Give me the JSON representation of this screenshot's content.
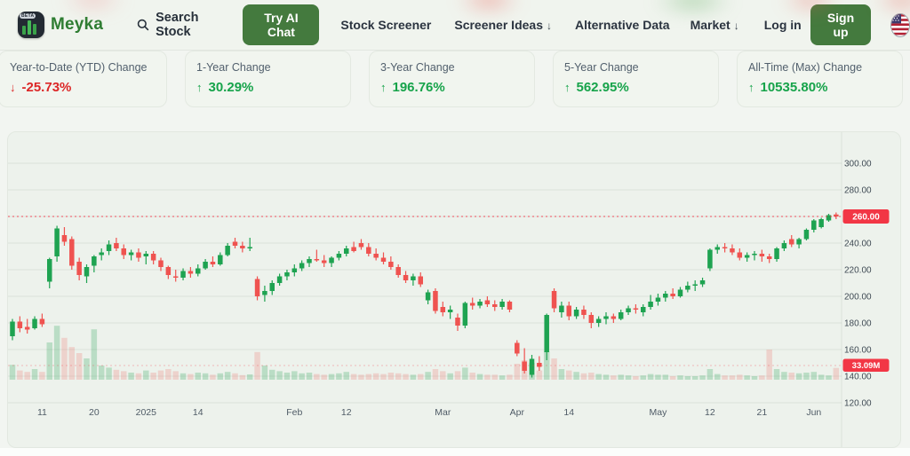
{
  "nav": {
    "brand": "Meyka",
    "brand_beta": "BETA",
    "search_label": "Search Stock",
    "try_ai_chat": "Try AI Chat",
    "stock_screener": "Stock Screener",
    "screener_ideas": "Screener Ideas",
    "alternative_data": "Alternative Data",
    "market": "Market",
    "dropdown_arrow": "↓",
    "log_in": "Log in",
    "sign_up": "Sign up"
  },
  "stats": {
    "cards": [
      {
        "label": "Year-to-Date (YTD) Change",
        "arrow": "↓",
        "value": "-25.73%",
        "direction": "down"
      },
      {
        "label": "1-Year Change",
        "arrow": "↑",
        "value": "30.29%",
        "direction": "up"
      },
      {
        "label": "3-Year Change",
        "arrow": "↑",
        "value": "196.76%",
        "direction": "up"
      },
      {
        "label": "5-Year Change",
        "arrow": "↑",
        "value": "562.95%",
        "direction": "up"
      },
      {
        "label": "All-Time (Max) Change",
        "arrow": "↑",
        "value": "10535.80%",
        "direction": "up"
      }
    ]
  },
  "colors": {
    "up": "#1ea351",
    "down": "#ef5350",
    "vol_up": "rgba(34,160,80,0.25)",
    "vol_down": "rgba(239,83,80,0.20)",
    "badge": "#f23645",
    "grid": "rgba(96,125,97,0.13)",
    "axis_text": "#3f4a54",
    "date_text": "#4f5b66"
  },
  "chart_data": {
    "type": "candlestick_with_volume",
    "last_price_label": "260.00",
    "last_volume_label": "33.09M",
    "y_ticks": [
      300,
      280,
      260,
      240,
      220,
      200,
      180,
      160,
      140,
      120
    ],
    "y_range": [
      118,
      310
    ],
    "x_ticks": [
      {
        "label": "11",
        "index": 4
      },
      {
        "label": "20",
        "index": 11
      },
      {
        "label": "2025",
        "index": 18
      },
      {
        "label": "14",
        "index": 25
      },
      {
        "label": "Feb",
        "index": 38
      },
      {
        "label": "12",
        "index": 45
      },
      {
        "label": "Mar",
        "index": 58
      },
      {
        "label": "Apr",
        "index": 68
      },
      {
        "label": "14",
        "index": 75
      },
      {
        "label": "May",
        "index": 87
      },
      {
        "label": "12",
        "index": 94
      },
      {
        "label": "21",
        "index": 101
      },
      {
        "label": "Jun",
        "index": 108
      }
    ],
    "candles_format": [
      "open",
      "high",
      "low",
      "close",
      "volume_millions"
    ],
    "candles": [
      [
        170,
        183,
        167,
        181,
        42
      ],
      [
        181,
        185,
        173,
        176,
        26
      ],
      [
        177,
        183,
        172,
        175,
        22
      ],
      [
        176,
        185,
        175,
        183,
        30
      ],
      [
        183,
        187,
        177,
        179,
        22
      ],
      [
        211,
        229,
        206,
        228,
        105
      ],
      [
        230,
        253,
        226,
        251,
        152
      ],
      [
        246,
        252,
        238,
        241,
        118
      ],
      [
        243,
        245,
        220,
        223,
        92
      ],
      [
        226,
        229,
        212,
        216,
        75
      ],
      [
        215,
        224,
        210,
        222,
        60
      ],
      [
        223,
        231,
        218,
        230,
        142
      ],
      [
        231,
        236,
        227,
        233,
        40
      ],
      [
        234,
        242,
        231,
        239,
        34
      ],
      [
        240,
        244,
        234,
        236,
        28
      ],
      [
        236,
        239,
        228,
        231,
        24
      ],
      [
        231,
        235,
        227,
        233,
        20
      ],
      [
        233,
        236,
        226,
        229,
        18
      ],
      [
        230,
        234,
        224,
        232,
        26
      ],
      [
        232,
        234,
        224,
        227,
        20
      ],
      [
        227,
        229,
        219,
        222,
        26
      ],
      [
        222,
        223,
        213,
        216,
        30
      ],
      [
        215,
        220,
        211,
        214,
        24
      ],
      [
        214,
        221,
        212,
        219,
        18
      ],
      [
        219,
        222,
        214,
        217,
        16
      ],
      [
        217,
        224,
        215,
        221,
        20
      ],
      [
        221,
        228,
        220,
        226,
        18
      ],
      [
        226,
        230,
        222,
        224,
        14
      ],
      [
        224,
        233,
        223,
        231,
        18
      ],
      [
        231,
        240,
        230,
        238,
        22
      ],
      [
        241,
        244,
        236,
        238,
        18
      ],
      [
        238,
        241,
        233,
        236,
        13
      ],
      [
        236,
        244,
        234,
        237,
        15
      ],
      [
        213,
        215,
        197,
        200,
        78
      ],
      [
        201,
        208,
        196,
        204,
        40
      ],
      [
        204,
        212,
        201,
        210,
        28
      ],
      [
        210,
        217,
        208,
        215,
        24
      ],
      [
        215,
        220,
        212,
        218,
        20
      ],
      [
        218,
        224,
        215,
        221,
        24
      ],
      [
        221,
        227,
        219,
        225,
        18
      ],
      [
        225,
        230,
        222,
        228,
        20
      ],
      [
        228,
        235,
        226,
        227,
        16
      ],
      [
        227,
        231,
        222,
        225,
        14
      ],
      [
        225,
        230,
        222,
        229,
        16
      ],
      [
        229,
        234,
        227,
        232,
        18
      ],
      [
        232,
        238,
        230,
        236,
        22
      ],
      [
        237,
        241,
        233,
        234,
        16
      ],
      [
        240,
        243,
        235,
        237,
        14
      ],
      [
        237,
        240,
        230,
        232,
        16
      ],
      [
        232,
        236,
        227,
        229,
        18
      ],
      [
        229,
        233,
        224,
        226,
        16
      ],
      [
        226,
        230,
        220,
        222,
        20
      ],
      [
        222,
        224,
        214,
        216,
        18
      ],
      [
        216,
        219,
        210,
        212,
        16
      ],
      [
        212,
        217,
        208,
        215,
        14
      ],
      [
        215,
        218,
        207,
        209,
        16
      ],
      [
        197,
        205,
        194,
        203,
        22
      ],
      [
        204,
        206,
        187,
        189,
        30
      ],
      [
        192,
        196,
        185,
        188,
        24
      ],
      [
        188,
        193,
        183,
        190,
        18
      ],
      [
        184,
        187,
        174,
        178,
        24
      ],
      [
        178,
        196,
        176,
        195,
        34
      ],
      [
        195,
        199,
        190,
        193,
        20
      ],
      [
        193,
        198,
        191,
        196,
        16
      ],
      [
        197,
        200,
        192,
        194,
        14
      ],
      [
        194,
        197,
        189,
        192,
        14
      ],
      [
        192,
        198,
        190,
        196,
        12
      ],
      [
        196,
        197,
        188,
        190,
        14
      ],
      [
        165,
        167,
        155,
        157,
        45
      ],
      [
        151,
        161,
        142,
        144,
        55
      ],
      [
        141,
        156,
        139,
        153,
        48
      ],
      [
        150,
        155,
        144,
        147,
        26
      ],
      [
        158,
        187,
        152,
        186,
        80
      ],
      [
        204,
        206,
        188,
        191,
        60
      ],
      [
        188,
        196,
        184,
        193,
        30
      ],
      [
        193,
        196,
        182,
        185,
        26
      ],
      [
        185,
        192,
        183,
        190,
        22
      ],
      [
        190,
        193,
        183,
        186,
        18
      ],
      [
        186,
        188,
        176,
        180,
        20
      ],
      [
        180,
        185,
        177,
        183,
        16
      ],
      [
        183,
        188,
        179,
        185,
        14
      ],
      [
        185,
        187,
        180,
        183,
        12
      ],
      [
        183,
        190,
        182,
        188,
        14
      ],
      [
        188,
        193,
        186,
        191,
        12
      ],
      [
        191,
        194,
        187,
        190,
        10
      ],
      [
        188,
        194,
        185,
        192,
        12
      ],
      [
        192,
        201,
        190,
        196,
        16
      ],
      [
        196,
        202,
        193,
        199,
        14
      ],
      [
        199,
        204,
        196,
        202,
        14
      ],
      [
        202,
        206,
        198,
        200,
        10
      ],
      [
        200,
        207,
        199,
        205,
        12
      ],
      [
        205,
        211,
        203,
        208,
        10
      ],
      [
        208,
        212,
        204,
        209,
        10
      ],
      [
        209,
        214,
        207,
        212,
        12
      ],
      [
        221,
        236,
        219,
        235,
        30
      ],
      [
        235,
        239,
        232,
        237,
        16
      ],
      [
        237,
        240,
        233,
        236,
        12
      ],
      [
        236,
        239,
        231,
        233,
        12
      ],
      [
        233,
        236,
        227,
        229,
        14
      ],
      [
        229,
        233,
        226,
        231,
        12
      ],
      [
        231,
        234,
        227,
        232,
        10
      ],
      [
        232,
        235,
        226,
        230,
        12
      ],
      [
        230,
        232,
        225,
        228,
        85
      ],
      [
        228,
        237,
        226,
        236,
        30
      ],
      [
        236,
        242,
        234,
        240,
        22
      ],
      [
        243,
        246,
        237,
        239,
        20
      ],
      [
        239,
        244,
        236,
        243,
        18
      ],
      [
        243,
        251,
        242,
        250,
        20
      ],
      [
        250,
        258,
        248,
        257,
        22
      ],
      [
        252,
        259,
        251,
        258,
        14
      ],
      [
        257,
        262,
        256,
        261,
        12
      ],
      [
        261.5,
        263,
        258,
        260,
        33.09
      ]
    ]
  }
}
